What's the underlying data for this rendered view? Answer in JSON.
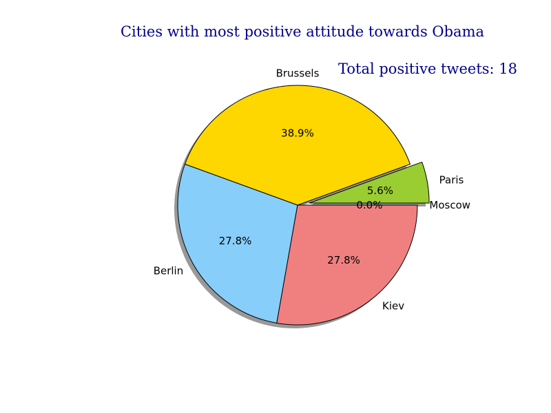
{
  "chart_data": {
    "type": "pie",
    "title": "Cities with most positive attitude towards Obama",
    "annotation": "Total positive tweets: 18",
    "slices": [
      {
        "label": "Paris",
        "value": 1,
        "percent_label": "5.6%",
        "color": "#9acd32",
        "exploded": true
      },
      {
        "label": "Brussels",
        "value": 7,
        "percent_label": "38.9%",
        "color": "#ffd700",
        "exploded": false
      },
      {
        "label": "Berlin",
        "value": 5,
        "percent_label": "27.8%",
        "color": "#87cefa",
        "exploded": false
      },
      {
        "label": "Kiev",
        "value": 5,
        "percent_label": "27.8%",
        "color": "#f08080",
        "exploded": false
      },
      {
        "label": "Moscow",
        "value": 0,
        "percent_label": "0.0%",
        "color": "#98fb98",
        "exploded": false
      }
    ],
    "shadow": true,
    "start_angle_deg": 0,
    "direction": "counterclockwise"
  }
}
